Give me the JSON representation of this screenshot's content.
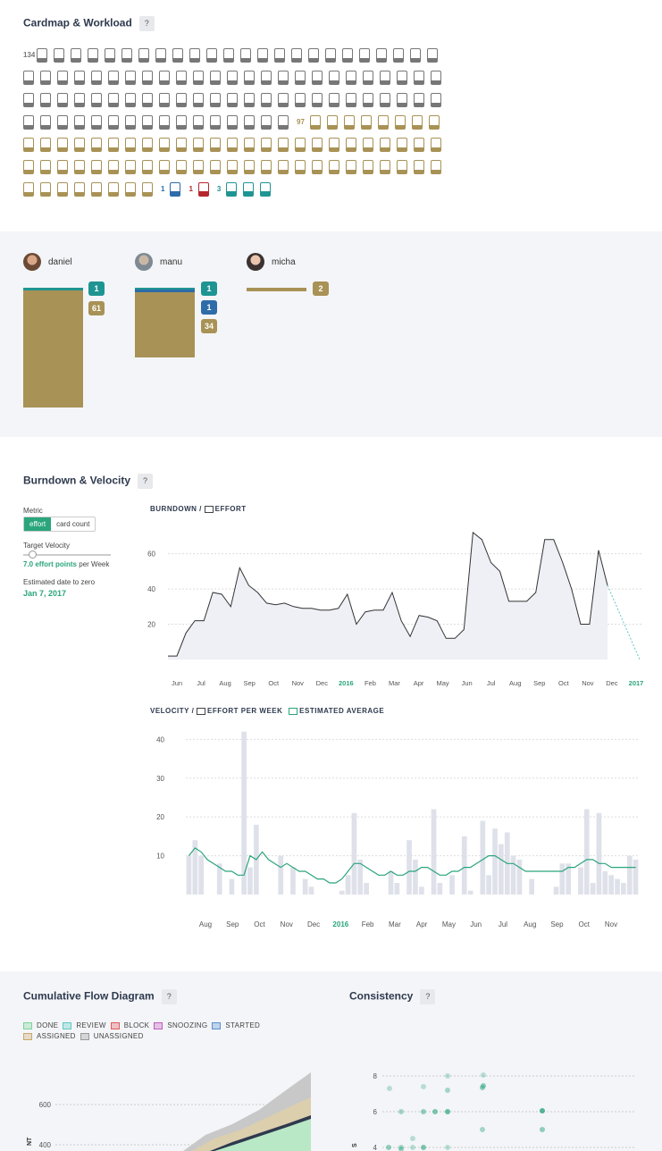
{
  "cardmap": {
    "title": "Cardmap & Workload",
    "help": "?",
    "rows": [
      {
        "lead_count": "134",
        "cards": [
          {
            "c": "g",
            "n": 24
          }
        ],
        "trail": []
      },
      {
        "lead_count": "",
        "cards": [
          {
            "c": "g",
            "n": 25
          }
        ],
        "trail": []
      },
      {
        "lead_count": "",
        "cards": [
          {
            "c": "g",
            "n": 25
          }
        ],
        "trail": []
      },
      {
        "lead_count": "",
        "cards": [
          {
            "c": "g",
            "n": 16
          },
          {
            "label": "97",
            "color": "#a89255"
          },
          {
            "c": "y",
            "n": 8
          }
        ],
        "trail": []
      },
      {
        "lead_count": "",
        "cards": [
          {
            "c": "y",
            "n": 25
          }
        ],
        "trail": []
      },
      {
        "lead_count": "",
        "cards": [
          {
            "c": "y",
            "n": 25
          }
        ],
        "trail": []
      },
      {
        "lead_count": "",
        "cards": [
          {
            "c": "y",
            "n": 8
          },
          {
            "label": "1",
            "color": "#2d6ca8"
          },
          {
            "c": "b",
            "n": 1
          },
          {
            "label": "1",
            "color": "#b5272d"
          },
          {
            "c": "r",
            "n": 1
          },
          {
            "label": "3",
            "color": "#1f9593"
          },
          {
            "c": "t",
            "n": 3
          }
        ],
        "trail": []
      }
    ]
  },
  "workload": {
    "users": [
      {
        "name": "daniel",
        "badges": [
          {
            "value": "1",
            "color": "#1f9593"
          },
          {
            "value": "61",
            "color": "#a89255"
          }
        ]
      },
      {
        "name": "manu",
        "badges": [
          {
            "value": "1",
            "color": "#1f9593"
          },
          {
            "value": "1",
            "color": "#2d6ca8"
          },
          {
            "value": "34",
            "color": "#a89255"
          }
        ]
      },
      {
        "name": "micha",
        "badges": [
          {
            "value": "2",
            "color": "#a89255"
          }
        ]
      }
    ]
  },
  "burndown": {
    "title": "Burndown & Velocity",
    "help": "?",
    "metric_label": "Metric",
    "metric_options": [
      "effort",
      "card count"
    ],
    "metric_selected": "effort",
    "target_velocity_label": "Target Velocity",
    "target_velocity_value": "7.0 effort points",
    "target_velocity_unit": "per Week",
    "estimated_label": "Estimated date to zero",
    "estimated_value": "Jan 7, 2017",
    "burndown_chart_title": "BURNDOWN / ",
    "burndown_chart_series": "EFFORT",
    "velocity_chart_title": "VELOCITY / ",
    "velocity_chart_series1": "EFFORT PER WEEK",
    "velocity_chart_series2": "ESTIMATED AVERAGE"
  },
  "chart_data": [
    {
      "type": "line",
      "title": "BURNDOWN / EFFORT",
      "x_ticks": [
        "Jun",
        "Jul",
        "Aug",
        "Sep",
        "Oct",
        "Nov",
        "Dec",
        "2016",
        "Feb",
        "Mar",
        "Apr",
        "May",
        "Jun",
        "Jul",
        "Aug",
        "Sep",
        "Oct",
        "Nov",
        "Dec",
        "2017"
      ],
      "y_ticks": [
        20,
        40,
        60
      ],
      "ylim": [
        0,
        75
      ],
      "series": [
        {
          "values": [
            2,
            2,
            15,
            22,
            22,
            38,
            37,
            30,
            52,
            42,
            38,
            32,
            31,
            32,
            30,
            29,
            29,
            28,
            28,
            29,
            37,
            20,
            27,
            28,
            28,
            38,
            22,
            13,
            25,
            24,
            22,
            12,
            12,
            17,
            72,
            68,
            55,
            50,
            33,
            33,
            33,
            38,
            68,
            68,
            55,
            40,
            20,
            20,
            62,
            42
          ]
        }
      ],
      "projection": {
        "from": 42,
        "to": 0
      }
    },
    {
      "type": "bar",
      "title": "VELOCITY / EFFORT PER WEEK",
      "x_ticks": [
        "Aug",
        "Sep",
        "Oct",
        "Nov",
        "Dec",
        "2016",
        "Feb",
        "Mar",
        "Apr",
        "May",
        "Jun",
        "Jul",
        "Aug",
        "Sep",
        "Oct",
        "Nov"
      ],
      "y_ticks": [
        10,
        20,
        30,
        40
      ],
      "ylim": [
        0,
        44
      ],
      "series": [
        {
          "name": "EFFORT PER WEEK",
          "values": [
            10,
            14,
            10,
            0,
            0,
            8,
            0,
            4,
            0,
            42,
            7,
            18,
            0,
            0,
            0,
            10,
            0,
            7,
            0,
            4,
            2,
            0,
            0,
            0,
            0,
            1,
            5,
            21,
            9,
            3,
            0,
            0,
            0,
            6,
            3,
            0,
            14,
            9,
            2,
            0,
            22,
            3,
            0,
            5,
            0,
            15,
            1,
            0,
            19,
            5,
            17,
            13,
            16,
            10,
            9,
            0,
            4,
            0,
            0,
            0,
            2,
            8,
            8,
            0,
            7,
            22,
            3,
            21,
            6,
            5,
            4,
            3,
            10,
            9
          ]
        },
        {
          "name": "ESTIMATED AVERAGE",
          "values": [
            10,
            12,
            11,
            9,
            8,
            7,
            6,
            6,
            5,
            5,
            10,
            9,
            11,
            9,
            8,
            7,
            8,
            7,
            6,
            6,
            5,
            4,
            4,
            3,
            3,
            4,
            6,
            8,
            8,
            7,
            6,
            5,
            5,
            6,
            5,
            5,
            6,
            6,
            7,
            7,
            6,
            5,
            5,
            6,
            6,
            7,
            7,
            8,
            9,
            10,
            10,
            9,
            8,
            8,
            7,
            6,
            6,
            6,
            6,
            6,
            6,
            6,
            7,
            7,
            8,
            9,
            9,
            8,
            8,
            7,
            7,
            7,
            7,
            7
          ]
        }
      ]
    },
    {
      "type": "area",
      "title": "",
      "y_ticks": [
        400,
        600
      ],
      "series": [
        {
          "name": "DONE"
        },
        {
          "name": "REVIEW"
        },
        {
          "name": "BLOCK"
        },
        {
          "name": "SNOOZING"
        },
        {
          "name": "STARTED"
        },
        {
          "name": "ASSIGNED"
        },
        {
          "name": "UNASSIGNED"
        }
      ]
    },
    {
      "type": "scatter",
      "title": "",
      "y_ticks": [
        4,
        6,
        8
      ]
    }
  ],
  "cfd": {
    "title": "Cumulative Flow Diagram",
    "help": "?",
    "legend": [
      {
        "label": "DONE",
        "color": "#7bd49a"
      },
      {
        "label": "REVIEW",
        "color": "#5fc8c3"
      },
      {
        "label": "BLOCK",
        "color": "#e25a5a"
      },
      {
        "label": "SNOOZING",
        "color": "#c25ac0"
      },
      {
        "label": "STARTED",
        "color": "#5a8fd0"
      },
      {
        "label": "ASSIGNED",
        "color": "#c9a96a"
      },
      {
        "label": "UNASSIGNED",
        "color": "#999999"
      }
    ],
    "axis_label": "NT"
  },
  "consistency": {
    "title": "Consistency",
    "help": "?",
    "axis_label": "S"
  }
}
